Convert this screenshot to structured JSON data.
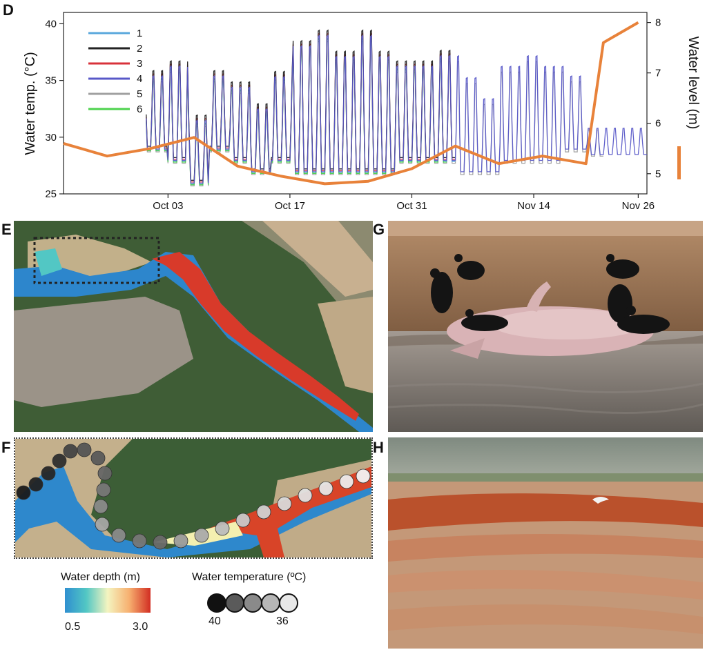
{
  "panels": {
    "d": "D",
    "e": "E",
    "f": "F",
    "g": "G",
    "h": "H"
  },
  "chart_data": {
    "type": "line",
    "xlabel": "",
    "ylabel": "Water temp. (°C)",
    "y2label": "Water level (m)",
    "x_ticks": [
      "Oct 03",
      "Oct 17",
      "Oct 31",
      "Nov 14",
      "Nov 26"
    ],
    "x_range": [
      "Sep 21",
      "Nov 27"
    ],
    "ylim": [
      25,
      41
    ],
    "y_ticks": [
      25,
      30,
      35,
      40
    ],
    "y2lim": [
      4.6,
      8.2
    ],
    "y2_ticks": [
      5,
      6,
      7,
      8
    ],
    "legend": [
      "1",
      "2",
      "3",
      "4",
      "5",
      "6"
    ],
    "legend_position": "top-left",
    "series_colors": {
      "1": "#5aa8dc",
      "2": "#222222",
      "3": "#d8323a",
      "4": "#5858c8",
      "5": "#a0a0a0",
      "6": "#4cd24c",
      "level": "#e8823a"
    },
    "water_level": {
      "day": [
        0,
        5,
        10,
        15,
        20,
        25,
        30,
        35,
        40,
        45,
        50,
        55,
        60,
        62,
        66
      ],
      "values": [
        5.6,
        5.35,
        5.5,
        5.72,
        5.15,
        4.95,
        4.8,
        4.85,
        5.1,
        5.55,
        5.2,
        5.35,
        5.2,
        7.6,
        8.0
      ],
      "note_days": "days since Sep 21"
    },
    "temperature": {
      "day_start": 9.5,
      "day_end": 67,
      "diel_max": [
        36,
        37,
        32,
        36,
        35,
        33,
        36,
        39,
        40,
        38,
        40,
        38,
        37,
        37,
        38,
        36,
        34,
        37,
        38,
        37,
        36,
        31,
        31,
        32
      ],
      "diel_min": [
        29,
        28,
        26,
        29,
        28,
        27,
        28,
        27,
        27,
        27,
        27,
        27,
        28,
        28,
        28,
        27,
        27,
        28,
        28,
        28,
        29,
        29,
        28,
        29
      ]
    }
  },
  "legend_e": {
    "depth_title": "Water depth (m)",
    "depth_min": "0.5",
    "depth_max": "3.0",
    "temp_title": "Water temperature (ºC)",
    "temp_high": "40",
    "temp_low": "36",
    "temp_colors": [
      "#111111",
      "#5a5a5a",
      "#8a8a8a",
      "#b6b6b6",
      "#e8e8e8"
    ]
  }
}
